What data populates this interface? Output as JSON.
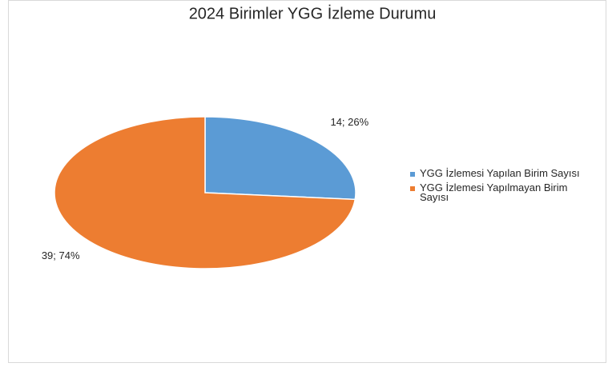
{
  "chart_data": {
    "type": "pie",
    "title": "2024 Birimler YGG İzleme Durumu",
    "categories": [
      "YGG İzlemesi Yapılan Birim Sayısı",
      "YGG İzlemesi Yapılmayan Birim Sayısı"
    ],
    "values": [
      14,
      39
    ],
    "value_labels": [
      "14; 26%",
      "39; 74%"
    ],
    "colors": [
      "#5b9bd5",
      "#ed7d31"
    ],
    "legend": "right"
  }
}
